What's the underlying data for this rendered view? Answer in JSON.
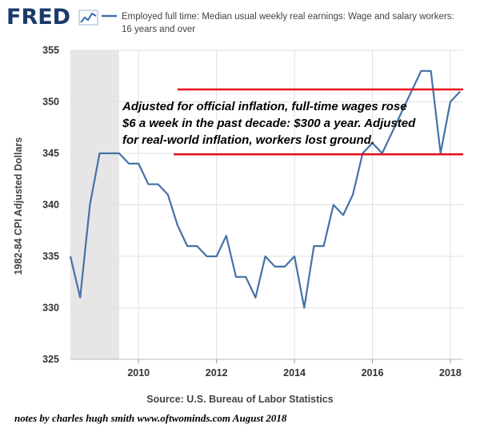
{
  "header": {
    "logo_text": "FRED",
    "legend_line1": "Employed full time: Median usual weekly real earnings: Wage and salary workers:",
    "legend_line2": "16 years and over"
  },
  "annotation": {
    "lines": [
      "Adjusted for official inflation, full-time wages rose",
      "$6 a week in the past decade: $300 a year. Adjusted",
      "for real-world inflation, workers lost ground."
    ]
  },
  "footer": {
    "source": "Source: U.S. Bureau of Labor Statistics",
    "notes": "notes by charles hugh smith  www.oftwominds.com   August 2018"
  },
  "colors": {
    "series": "#4572a7",
    "recession": "#e6e6e6",
    "annotation_lines": "#e8111b",
    "grid": "#e0e0e0"
  },
  "chart_data": {
    "type": "line",
    "title": "",
    "xlabel": "",
    "ylabel": "1982-84 CPI Adjusted Dollars",
    "xlim": [
      2008.25,
      2018.33
    ],
    "ylim": [
      325,
      355
    ],
    "yticks": [
      325,
      330,
      335,
      340,
      345,
      350,
      355
    ],
    "xticks": [
      2010,
      2012,
      2014,
      2016,
      2018
    ],
    "grid": true,
    "recession_shading": [
      2008.25,
      2009.5
    ],
    "reference_lines": [
      {
        "value": 351.2,
        "x_range": [
          2011.0,
          2018.33
        ]
      },
      {
        "value": 344.9,
        "x_range": [
          2010.9,
          2018.33
        ]
      }
    ],
    "series": [
      {
        "name": "Employed full time: Median usual weekly real earnings: Wage and salary workers: 16 years and over",
        "x": [
          2008.25,
          2008.5,
          2008.75,
          2009.0,
          2009.25,
          2009.5,
          2009.75,
          2010.0,
          2010.25,
          2010.5,
          2010.75,
          2011.0,
          2011.25,
          2011.5,
          2011.75,
          2012.0,
          2012.25,
          2012.5,
          2012.75,
          2013.0,
          2013.25,
          2013.5,
          2013.75,
          2014.0,
          2014.25,
          2014.5,
          2014.75,
          2015.0,
          2015.25,
          2015.5,
          2015.75,
          2016.0,
          2016.25,
          2016.5,
          2016.75,
          2017.0,
          2017.25,
          2017.5,
          2017.75,
          2018.0,
          2018.25
        ],
        "values": [
          335,
          331,
          340,
          345,
          345,
          345,
          344,
          344,
          342,
          342,
          341,
          338,
          336,
          336,
          335,
          335,
          337,
          333,
          333,
          331,
          335,
          334,
          334,
          335,
          330,
          336,
          336,
          340,
          339,
          341,
          345,
          346,
          345,
          347,
          349,
          351,
          353,
          353,
          345,
          350,
          351
        ]
      }
    ]
  }
}
